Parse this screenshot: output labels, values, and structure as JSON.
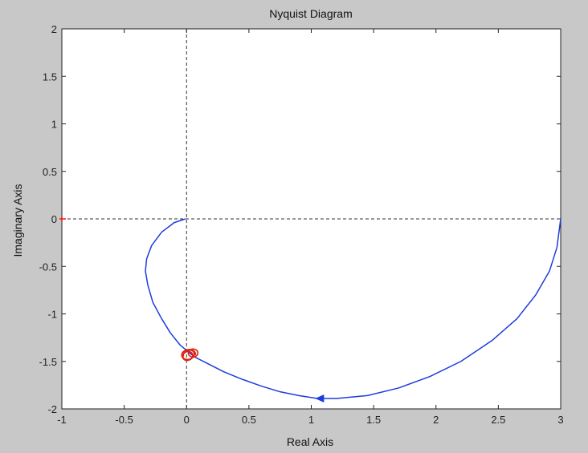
{
  "chart_data": {
    "type": "line",
    "title": "Nyquist Diagram",
    "xlabel": "Real Axis",
    "ylabel": "Imaginary Axis",
    "xlim": [
      -1,
      3
    ],
    "ylim": [
      -2,
      2
    ],
    "xticks": [
      -1,
      -0.5,
      0,
      0.5,
      1,
      1.5,
      2,
      2.5,
      3
    ],
    "xtick_labels": [
      "-1",
      "-0.5",
      "0",
      "0.5",
      "1",
      "1.5",
      "2",
      "2.5",
      "3"
    ],
    "yticks": [
      -2,
      -1.5,
      -1,
      -0.5,
      0,
      0.5,
      1,
      1.5,
      2
    ],
    "ytick_labels": [
      "-2",
      "-1.5",
      "-1",
      "-0.5",
      "0",
      "0.5",
      "1",
      "1.5",
      "2"
    ],
    "grid": false,
    "reference_lines": {
      "x": 0,
      "y": 0
    },
    "critical_point": {
      "x": -1,
      "y": 0
    },
    "series": [
      {
        "color": "#1e3cdc",
        "x": [
          3.0,
          2.97,
          2.91,
          2.8,
          2.65,
          2.45,
          2.2,
          1.95,
          1.7,
          1.45,
          1.2,
          1.05,
          0.9,
          0.75,
          0.6,
          0.45,
          0.3,
          0.18,
          0.06,
          -0.05,
          -0.13,
          -0.2,
          -0.27,
          -0.31,
          -0.33,
          -0.32,
          -0.28,
          -0.2,
          -0.1,
          -0.01
        ],
        "y": [
          0.0,
          -0.3,
          -0.55,
          -0.8,
          -1.05,
          -1.28,
          -1.5,
          -1.66,
          -1.78,
          -1.86,
          -1.89,
          -1.89,
          -1.86,
          -1.82,
          -1.76,
          -1.69,
          -1.61,
          -1.53,
          -1.45,
          -1.33,
          -1.2,
          -1.05,
          -0.88,
          -0.7,
          -0.55,
          -0.42,
          -0.28,
          -0.14,
          -0.04,
          0.0
        ]
      }
    ],
    "arrow": {
      "x": 1.07,
      "y": -1.89,
      "color": "#1e3cdc"
    },
    "annotation": {
      "color": "#e02010",
      "x": 0.02,
      "y": -1.42,
      "style": "handwritten-scribble"
    }
  }
}
